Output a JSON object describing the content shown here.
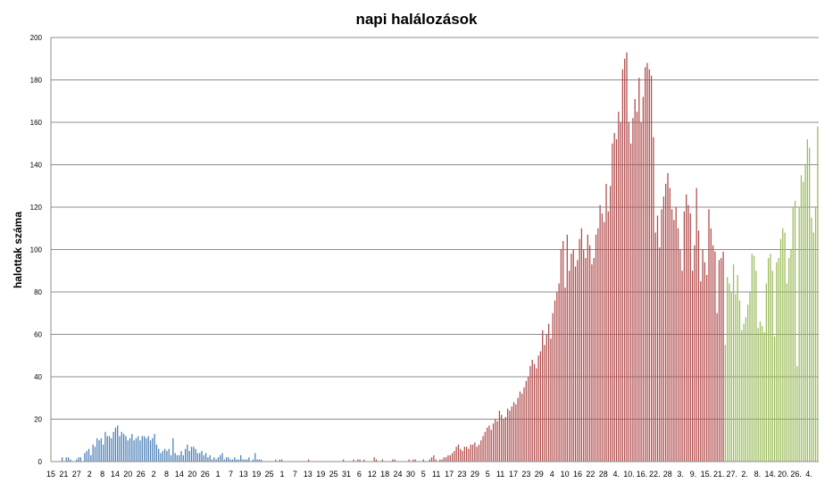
{
  "chart_data": {
    "type": "bar",
    "title": "napi halálozások",
    "ylabel": "halottak száma",
    "xlabel": "",
    "ylim": [
      0,
      200
    ],
    "yticks": [
      0,
      20,
      40,
      60,
      80,
      100,
      120,
      140,
      160,
      180,
      200
    ],
    "grid": true,
    "legend": "none",
    "x_tick_labels": [
      "15",
      "21",
      "27",
      "2",
      "8",
      "14",
      "20",
      "26",
      "2",
      "8",
      "14",
      "20",
      "26",
      "1",
      "7",
      "13",
      "19",
      "25",
      "1",
      "7",
      "13",
      "19",
      "25",
      "31",
      "6",
      "12",
      "18",
      "24",
      "30",
      "5",
      "11",
      "17",
      "23",
      "29",
      "5",
      "11",
      "17",
      "23",
      "29",
      "4",
      "10",
      "16",
      "22",
      "28",
      "4.",
      "10.",
      "16.",
      "22.",
      "28",
      "3.",
      "9.",
      "15.",
      "21.",
      "27.",
      "2.",
      "8.",
      "14.",
      "20.",
      "26.",
      "4."
    ],
    "series": [
      {
        "color": "#4a7eb6",
        "values": [
          0,
          0,
          0,
          0,
          0,
          2,
          0,
          2,
          2,
          1,
          0,
          0,
          1,
          2,
          2,
          0,
          4,
          5,
          6,
          3,
          8,
          7,
          11,
          10,
          11,
          8,
          14,
          12,
          12,
          11,
          14,
          16,
          17,
          12,
          14,
          13,
          12,
          10,
          11,
          13,
          10,
          11,
          12,
          10,
          12,
          12,
          11,
          12,
          10,
          11,
          13,
          8,
          6,
          4,
          5,
          6,
          5,
          6,
          3,
          11,
          4,
          3,
          3,
          5,
          3,
          6,
          8,
          5,
          7,
          7,
          6,
          4,
          4,
          5,
          3,
          4,
          2,
          3,
          1,
          2,
          1,
          2,
          3,
          4,
          1,
          2,
          2,
          1,
          1,
          2,
          1,
          1,
          3,
          1,
          1,
          1,
          2,
          0,
          1,
          4,
          1,
          1,
          1,
          0,
          0,
          0,
          0,
          0,
          0,
          1,
          0,
          1,
          1
        ]
      },
      {
        "color": "#b04a4a",
        "values": [
          0,
          0,
          0,
          0,
          0,
          0,
          0,
          0,
          0,
          0,
          0,
          0,
          1,
          0,
          0,
          0,
          0,
          0,
          0,
          0,
          0,
          0,
          0,
          0,
          0,
          0,
          0,
          0,
          0,
          1,
          0,
          0,
          0,
          0,
          1,
          0,
          1,
          1,
          0,
          1,
          0,
          0,
          0,
          0,
          2,
          1,
          0,
          0,
          1,
          0,
          0,
          0,
          0,
          1,
          1,
          0,
          0,
          0,
          0,
          0,
          0,
          1,
          0,
          1,
          1,
          0,
          0,
          0,
          1,
          0,
          0,
          1,
          2,
          3,
          1,
          0,
          1,
          1,
          2,
          2,
          3,
          3,
          4,
          5,
          7,
          8,
          6,
          5,
          7,
          7,
          6,
          8,
          8,
          9,
          7,
          8,
          10,
          12,
          14,
          16,
          17,
          15,
          18,
          20,
          19,
          24,
          22,
          20,
          21,
          25,
          24,
          26,
          28,
          27,
          30,
          33,
          32,
          35,
          38,
          40,
          45,
          48,
          46,
          44,
          50,
          52,
          62,
          55,
          60,
          65,
          58,
          70,
          76,
          80,
          84,
          100,
          104,
          82,
          107,
          90,
          98,
          100,
          92,
          95,
          105,
          110,
          100,
          96,
          107,
          102,
          93,
          96,
          107,
          110,
          121,
          117,
          113,
          131,
          118,
          130,
          150,
          155,
          152,
          165,
          160,
          185,
          190,
          193,
          160,
          150,
          162,
          171,
          165,
          181,
          160,
          172,
          186,
          188,
          185,
          182,
          153,
          108,
          116,
          101,
          119,
          125,
          131,
          136,
          129,
          119,
          114,
          120,
          110,
          100,
          90,
          118,
          126,
          121,
          117,
          90,
          102,
          129,
          109,
          85,
          100,
          94,
          88,
          119,
          110,
          102,
          99,
          70,
          95,
          96,
          99
        ]
      },
      {
        "color": "#9bbb59",
        "values": [
          55,
          87,
          84,
          80,
          93,
          79,
          88,
          76,
          62,
          65,
          68,
          74,
          80,
          98,
          97,
          90,
          63,
          66,
          64,
          61,
          84,
          96,
          98,
          90,
          59,
          94,
          96,
          105,
          110,
          108,
          84,
          96,
          100,
          120,
          123,
          45,
          120,
          135,
          132,
          140,
          152,
          148,
          115,
          108,
          120,
          158
        ]
      }
    ]
  }
}
